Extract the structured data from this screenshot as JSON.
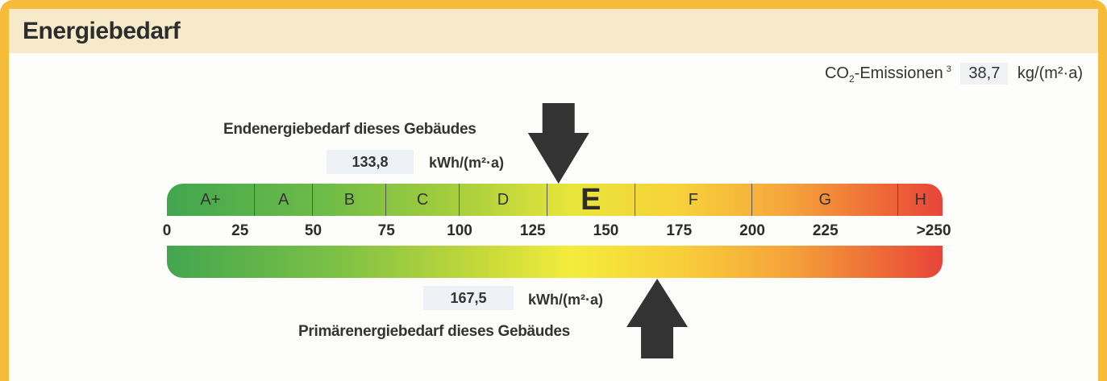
{
  "header": {
    "title": "Energiebedarf"
  },
  "co2": {
    "prefix": "CO",
    "sub": "2",
    "suffix": "-Emissionen",
    "footnote": "3",
    "value": "38,7",
    "unit": "kg/(m²·a)"
  },
  "endenergie": {
    "label": "Endenergiebedarf dieses Gebäudes",
    "value": "133,8",
    "unit": "kWh/(m²·a)"
  },
  "primaerenergie": {
    "label": "Primärenergiebedarf dieses Gebäudes",
    "value": "167,5",
    "unit": "kWh/(m²·a)"
  },
  "scale": {
    "classes": [
      {
        "label": "A+",
        "from": 0,
        "to": 30
      },
      {
        "label": "A",
        "from": 30,
        "to": 50
      },
      {
        "label": "B",
        "from": 50,
        "to": 75
      },
      {
        "label": "C",
        "from": 75,
        "to": 100
      },
      {
        "label": "D",
        "from": 100,
        "to": 130
      },
      {
        "label": "E",
        "from": 130,
        "to": 160
      },
      {
        "label": "F",
        "from": 160,
        "to": 200
      },
      {
        "label": "G",
        "from": 200,
        "to": 250
      },
      {
        "label": "H",
        "from": 250,
        "to": 265
      }
    ],
    "active_class": "E",
    "ticks": [
      {
        "label": "0",
        "value": 0
      },
      {
        "label": "25",
        "value": 25
      },
      {
        "label": "50",
        "value": 50
      },
      {
        "label": "75",
        "value": 75
      },
      {
        "label": "100",
        "value": 100
      },
      {
        "label": "125",
        "value": 125
      },
      {
        "label": "150",
        "value": 150
      },
      {
        "label": "175",
        "value": 175
      },
      {
        "label": "200",
        "value": 200
      },
      {
        "label": "225",
        "value": 225
      },
      {
        "label": ">250",
        "value": 262
      }
    ],
    "max": 265
  },
  "colors": {
    "frame": "#f7bb3a",
    "header_bg": "#f7eacb",
    "arrow": "#333333"
  }
}
